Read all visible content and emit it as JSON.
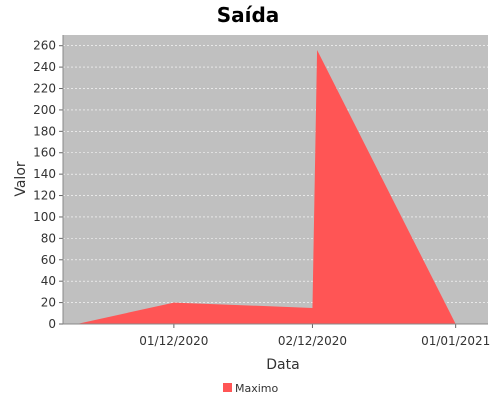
{
  "chart_data": {
    "type": "area",
    "title": "Saída",
    "xlabel": "Data",
    "ylabel": "Valor",
    "x": [
      "2020-11-10",
      "2020-12-01",
      "2020-12-31",
      "2021-01-01",
      "2021-01-31"
    ],
    "series": [
      {
        "name": "Maximo",
        "values": [
          0,
          20,
          15,
          256,
          0
        ]
      }
    ],
    "xticks": [
      "01/12/2020",
      "02/12/2020",
      "01/01/2021"
    ],
    "yticks": [
      0,
      20,
      40,
      60,
      80,
      100,
      120,
      140,
      160,
      180,
      200,
      220,
      240,
      260
    ],
    "ylim": [
      0,
      270
    ],
    "grid": true,
    "legend": "bottom",
    "colors": {
      "series": "#ff5555",
      "plot_background": "#c0c0c0",
      "grid": "#ffffff"
    }
  }
}
